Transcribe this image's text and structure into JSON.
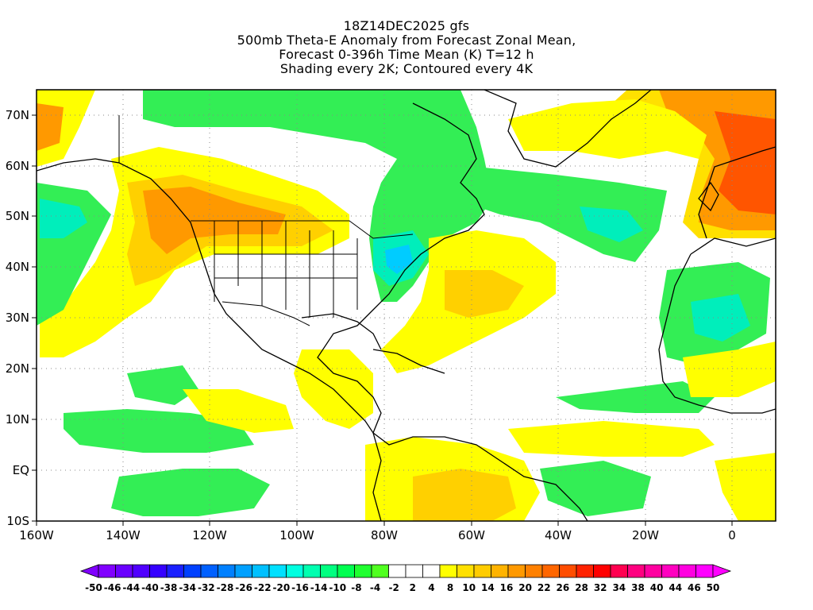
{
  "title": {
    "line1": "18Z14DEC2025 gfs",
    "line2": "500mb Theta-E Anomaly from Forecast Zonal Mean,",
    "line3": "Forecast 0-396h Time Mean (K) T=12 h",
    "line4": "Shading every 2K; Contoured every 4K"
  },
  "map": {
    "lon_range": [
      -160,
      10
    ],
    "lat_range": [
      -10,
      75
    ],
    "x_ticks": [
      "160W",
      "140W",
      "120W",
      "100W",
      "80W",
      "60W",
      "40W",
      "20W",
      "0"
    ],
    "y_ticks": [
      "70N",
      "60N",
      "50N",
      "40N",
      "30N",
      "20N",
      "10N",
      "EQ",
      "10S"
    ],
    "gridlines": "dotted"
  },
  "colorbar": {
    "labels": [
      "-50",
      "-46",
      "-44",
      "-40",
      "-38",
      "-34",
      "-32",
      "-28",
      "-26",
      "-22",
      "-20",
      "-16",
      "-14",
      "-10",
      "-8",
      "-4",
      "-2",
      "2",
      "4",
      "8",
      "10",
      "14",
      "16",
      "20",
      "22",
      "26",
      "28",
      "32",
      "34",
      "38",
      "40",
      "44",
      "46",
      "50"
    ],
    "colors": [
      "#8000ff",
      "#6a00ff",
      "#5000ff",
      "#3500ff",
      "#1a20ff",
      "#0040ff",
      "#0060ff",
      "#0080ff",
      "#00a0ff",
      "#00c0ff",
      "#00e0ff",
      "#00ffe0",
      "#00ffb0",
      "#00ff80",
      "#00ff50",
      "#20ff30",
      "#50ff20",
      "#ffffff",
      "#ffffff",
      "#ffffff",
      "#ffff00",
      "#ffe000",
      "#ffcc00",
      "#ffb300",
      "#ff9900",
      "#ff8000",
      "#ff6600",
      "#ff4d00",
      "#ff2200",
      "#ff0000",
      "#ff0050",
      "#ff0080",
      "#ff00a0",
      "#ff00c0",
      "#ff00e0",
      "#ff00ff"
    ]
  },
  "colors": {
    "warm_yellow": "#ffff00",
    "warm_gold": "#ffd000",
    "warm_orange": "#ff9900",
    "warm_red": "#ff5500",
    "cool_green": "#33ee55",
    "cool_green2": "#00ff80",
    "cool_cyan": "#00eebb",
    "cool_blue": "#00ccff"
  }
}
